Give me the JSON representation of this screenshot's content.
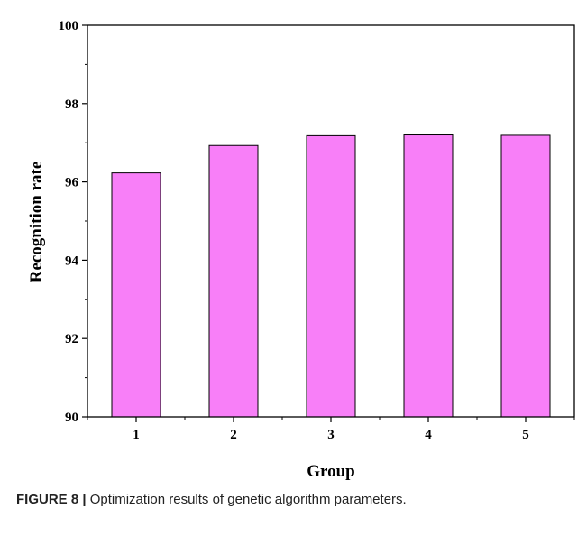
{
  "chart_data": {
    "type": "bar",
    "categories": [
      "1",
      "2",
      "3",
      "4",
      "5"
    ],
    "values": [
      96.23,
      96.93,
      97.18,
      97.2,
      97.19
    ],
    "xlabel": "Group",
    "ylabel": "Recognition rate",
    "ylim": [
      90,
      100
    ],
    "yticks": [
      "90",
      "92",
      "94",
      "96",
      "98",
      "100"
    ],
    "grid": false,
    "bar_color": "#f87ff8",
    "bar_edge_color": "#000000"
  },
  "caption": {
    "label": "FIGURE 8 |",
    "text": " Optimization results of genetic algorithm parameters."
  }
}
